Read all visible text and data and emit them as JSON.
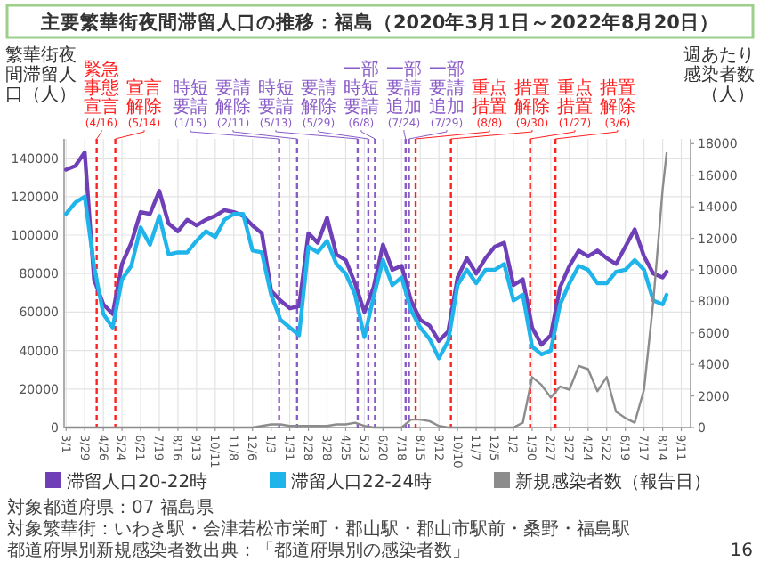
{
  "chart_data": {
    "type": "line",
    "title": "主要繁華街夜間滞留人口の推移：福島（2020年3月1日～2022年8月20日）",
    "ylabel": "繁華街夜間滞留人口（人）",
    "y2label": "週あたり感染者数（人）",
    "x": [
      "2020-03-01",
      "2020-03-15",
      "2020-03-29",
      "2020-04-12",
      "2020-04-26",
      "2020-05-10",
      "2020-05-24",
      "2020-06-07",
      "2020-06-21",
      "2020-07-05",
      "2020-07-19",
      "2020-08-02",
      "2020-08-16",
      "2020-08-30",
      "2020-09-13",
      "2020-09-27",
      "2020-10-11",
      "2020-10-25",
      "2020-11-08",
      "2020-11-22",
      "2020-12-06",
      "2020-12-20",
      "2021-01-03",
      "2021-01-17",
      "2021-01-31",
      "2021-02-14",
      "2021-02-28",
      "2021-03-14",
      "2021-03-28",
      "2021-04-11",
      "2021-04-25",
      "2021-05-09",
      "2021-05-23",
      "2021-06-06",
      "2021-06-20",
      "2021-07-04",
      "2021-07-18",
      "2021-08-01",
      "2021-08-15",
      "2021-08-29",
      "2021-09-12",
      "2021-09-26",
      "2021-10-10",
      "2021-10-24",
      "2021-11-07",
      "2021-11-21",
      "2021-12-05",
      "2021-12-19",
      "2022-01-02",
      "2022-01-16",
      "2022-01-30",
      "2022-02-13",
      "2022-02-27",
      "2022-03-13",
      "2022-03-27",
      "2022-04-10",
      "2022-04-24",
      "2022-05-08",
      "2022-05-22",
      "2022-06-05",
      "2022-06-19",
      "2022-07-03",
      "2022-07-17",
      "2022-07-31",
      "2022-08-14",
      "2022-08-20"
    ],
    "series": [
      {
        "name": "滞留人口20-22時",
        "color": "#6f3fb8",
        "values": [
          134000,
          136000,
          143000,
          77000,
          64000,
          59000,
          85000,
          96000,
          112000,
          111000,
          123000,
          106000,
          102000,
          108000,
          105000,
          108000,
          110000,
          113000,
          112000,
          110000,
          105000,
          101000,
          71000,
          66000,
          62000,
          63000,
          101000,
          96000,
          109000,
          90000,
          87000,
          75000,
          60000,
          73000,
          95000,
          82000,
          84000,
          66000,
          56000,
          53000,
          45000,
          50000,
          78000,
          88000,
          80000,
          88000,
          94000,
          96000,
          74000,
          77000,
          52000,
          43000,
          48000,
          73000,
          84000,
          92000,
          89000,
          92000,
          88000,
          85000,
          94000,
          103000,
          89000,
          80000,
          78000,
          81000
        ]
      },
      {
        "name": "滞留人口22-24時",
        "color": "#1fb5ea",
        "values": [
          111000,
          117000,
          120000,
          84000,
          59000,
          52000,
          77000,
          84000,
          104000,
          95000,
          110000,
          90000,
          91000,
          91000,
          97000,
          102000,
          99000,
          108000,
          111000,
          111000,
          92000,
          91000,
          69000,
          56000,
          52000,
          48000,
          94000,
          91000,
          97000,
          85000,
          80000,
          69000,
          47000,
          68000,
          87000,
          74000,
          78000,
          61000,
          52000,
          46000,
          36000,
          45000,
          74000,
          82000,
          75000,
          82000,
          82000,
          85000,
          66000,
          69000,
          42000,
          38000,
          40000,
          64000,
          75000,
          84000,
          82000,
          75000,
          75000,
          81000,
          82000,
          87000,
          82000,
          66000,
          64000,
          69000
        ]
      },
      {
        "name": "新規感染者数（報告日）",
        "color": "#8c8c8c",
        "axis": "y2",
        "values": [
          0,
          0,
          0,
          0,
          0,
          0,
          0,
          0,
          0,
          0,
          0,
          0,
          0,
          0,
          0,
          0,
          0,
          0,
          0,
          0,
          0,
          100,
          200,
          200,
          100,
          100,
          100,
          100,
          100,
          200,
          200,
          300,
          100,
          0,
          0,
          0,
          0,
          500,
          500,
          400,
          100,
          0,
          0,
          0,
          0,
          0,
          0,
          0,
          0,
          300,
          3200,
          2700,
          1900,
          2600,
          2400,
          3900,
          3700,
          2300,
          3200,
          1000,
          600,
          300,
          2400,
          8000,
          15100,
          17400
        ]
      }
    ],
    "xlim": [
      "2020-02-27",
      "2022-09-25"
    ],
    "xticks": [
      {
        "value": "2020-03-01",
        "label": "3/1"
      },
      {
        "value": "2020-03-29",
        "label": "3/29"
      },
      {
        "value": "2020-04-26",
        "label": "4/26"
      },
      {
        "value": "2020-05-24",
        "label": "5/24"
      },
      {
        "value": "2020-06-21",
        "label": "6/21"
      },
      {
        "value": "2020-07-19",
        "label": "7/19"
      },
      {
        "value": "2020-08-16",
        "label": "8/16"
      },
      {
        "value": "2020-09-13",
        "label": "9/13"
      },
      {
        "value": "2020-10-11",
        "label": "10/11"
      },
      {
        "value": "2020-11-08",
        "label": "11/8"
      },
      {
        "value": "2020-12-06",
        "label": "12/6"
      },
      {
        "value": "2021-01-03",
        "label": "1/3"
      },
      {
        "value": "2021-01-31",
        "label": "1/31"
      },
      {
        "value": "2021-02-28",
        "label": "2/28"
      },
      {
        "value": "2021-03-28",
        "label": "3/28"
      },
      {
        "value": "2021-04-25",
        "label": "4/25"
      },
      {
        "value": "2021-05-23",
        "label": "5/23"
      },
      {
        "value": "2021-06-20",
        "label": "6/20"
      },
      {
        "value": "2021-07-18",
        "label": "7/18"
      },
      {
        "value": "2021-08-15",
        "label": "8/15"
      },
      {
        "value": "2021-09-12",
        "label": "9/12"
      },
      {
        "value": "2021-10-10",
        "label": "10/10"
      },
      {
        "value": "2021-11-07",
        "label": "11/7"
      },
      {
        "value": "2021-12-05",
        "label": "12/5"
      },
      {
        "value": "2022-01-02",
        "label": "1/2"
      },
      {
        "value": "2022-01-30",
        "label": "1/30"
      },
      {
        "value": "2022-02-27",
        "label": "2/27"
      },
      {
        "value": "2022-03-27",
        "label": "3/27"
      },
      {
        "value": "2022-04-24",
        "label": "4/24"
      },
      {
        "value": "2022-05-22",
        "label": "5/22"
      },
      {
        "value": "2022-06-19",
        "label": "6/19"
      },
      {
        "value": "2022-07-17",
        "label": "7/17"
      },
      {
        "value": "2022-08-14",
        "label": "8/14"
      },
      {
        "value": "2022-09-11",
        "label": "9/11"
      }
    ],
    "ylim": [
      0,
      150000
    ],
    "yticks": [
      0,
      20000,
      40000,
      60000,
      80000,
      100000,
      120000,
      140000
    ],
    "y2lim": [
      0,
      18300
    ],
    "y2ticks": [
      0,
      2000,
      4000,
      6000,
      8000,
      10000,
      12000,
      14000,
      16000,
      18000
    ],
    "ref_lines": [
      {
        "axis": "x",
        "value": "2020-04-16",
        "label": "緊急事態宣言(4/16)",
        "color": "#ff2020",
        "line_style": "dashed"
      },
      {
        "axis": "x",
        "value": "2020-05-14",
        "label": "宣言解除(5/14)",
        "color": "#ff2020",
        "line_style": "dashed"
      },
      {
        "axis": "x",
        "value": "2021-01-15",
        "label": "時短要請(1/15)",
        "color": "#8a5cc7",
        "line_style": "dashed"
      },
      {
        "axis": "x",
        "value": "2021-02-11",
        "label": "要請解除(2/11)",
        "color": "#8a5cc7",
        "line_style": "dashed"
      },
      {
        "axis": "x",
        "value": "2021-05-13",
        "label": "時短要請(5/13)",
        "color": "#8a5cc7",
        "line_style": "dashed"
      },
      {
        "axis": "x",
        "value": "2021-05-29",
        "label": "要請解除(5/29)",
        "color": "#8a5cc7",
        "line_style": "dashed"
      },
      {
        "axis": "x",
        "value": "2021-06-08",
        "label": "一部時短要請(6/8)",
        "color": "#8a5cc7",
        "line_style": "dashed"
      },
      {
        "axis": "x",
        "value": "2021-07-24",
        "label": "一部要請追加(7/24)",
        "color": "#8a5cc7",
        "line_style": "dashed"
      },
      {
        "axis": "x",
        "value": "2021-07-29",
        "label": "一部要請追加(7/29)",
        "color": "#8a5cc7",
        "line_style": "dashed"
      },
      {
        "axis": "x",
        "value": "2021-08-08",
        "label": "重点措置(8/8)",
        "color": "#ff2020",
        "line_style": "dashed"
      },
      {
        "axis": "x",
        "value": "2021-09-30",
        "label": "措置解除(9/30)",
        "color": "#ff2020",
        "line_style": "dashed"
      },
      {
        "axis": "x",
        "value": "2022-01-27",
        "label": "重点措置(1/27)",
        "color": "#ff2020",
        "line_style": "dashed"
      },
      {
        "axis": "x",
        "value": "2022-03-06",
        "label": "措置解除(3/6)",
        "color": "#ff2020",
        "line_style": "dashed"
      }
    ],
    "grid": true,
    "legend": "bottom",
    "marker": "none",
    "line_style": "solid",
    "annotations": [
      "対象都道府県：07 福島県",
      "対象繁華街：いわき駅・会津若松市栄町・郡山駅・郡山市駅前・桑野・福島駅",
      "都道府県別新規感染者数出典：「都道府県別の感染者数」",
      "16"
    ]
  }
}
